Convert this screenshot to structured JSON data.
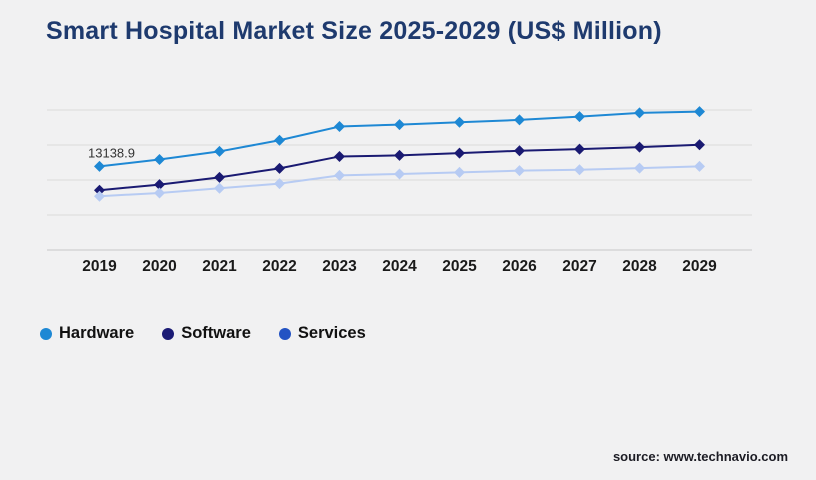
{
  "page": {
    "title": "Smart Hospital Market Size 2025-2029 (US$ Million)",
    "source_text": "source: www.technavio.com"
  },
  "colors": {
    "background": "#f1f1f2",
    "title_text": "#1e3a6e",
    "gridline": "#dadadb",
    "axis_line": "#c6c6c8",
    "x_tick_text": "#1a1a1a",
    "annotation_text": "#333333",
    "legend_text": "#111111",
    "source_text": "#1c1c24"
  },
  "legend": {
    "items": [
      {
        "label": "Hardware",
        "color": "#1e88d4"
      },
      {
        "label": "Software",
        "color": "#1b1b75"
      },
      {
        "label": "Services",
        "color": "#2353c3"
      }
    ]
  },
  "chart_data": {
    "type": "line",
    "title": "Smart Hospital Market Size 2025-2029 (US$ Million)",
    "categories": [
      "2019",
      "2020",
      "2021",
      "2022",
      "2023",
      "2024",
      "2025",
      "2026",
      "2027",
      "2028",
      "2029"
    ],
    "series": [
      {
        "name": "Hardware",
        "line_color": "#1e88d4",
        "marker": "diamond",
        "values": [
          13138.9,
          14230,
          15490,
          17250,
          19400,
          19710,
          20070,
          20440,
          20960,
          21540,
          21740
        ]
      },
      {
        "name": "Software",
        "line_color": "#1a1a72",
        "marker": "diamond",
        "values": [
          9390,
          10280,
          11420,
          12830,
          14700,
          14860,
          15220,
          15600,
          15850,
          16160,
          16530
        ]
      },
      {
        "name": "Services",
        "line_color": "#b7cbf3",
        "legend_color": "#2353c3",
        "marker": "diamond",
        "values": [
          8450,
          8960,
          9700,
          10430,
          11730,
          11940,
          12200,
          12470,
          12620,
          12870,
          13140
        ]
      }
    ],
    "annotations": [
      {
        "series": "Hardware",
        "category": "2019",
        "text": "13138.9"
      }
    ],
    "xlabel": "",
    "ylabel": "",
    "ylim": [
      0,
      22000
    ],
    "gridline_values": [
      22000,
      16500,
      11000,
      5500,
      0
    ],
    "y_axis_labels_visible": false,
    "grid": "horizontal-only",
    "legend_position": "bottom-left"
  }
}
